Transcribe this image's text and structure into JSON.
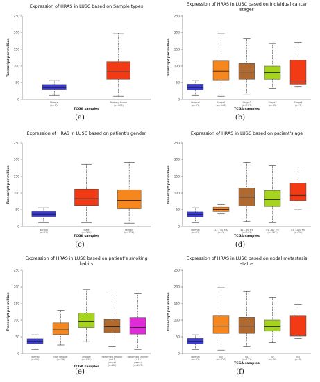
{
  "chart_data": [
    {
      "type": "box",
      "title": "Expression of HRAS in LUSC based on Sample types",
      "ylabel": "Transcript per million",
      "xlabel": "TCGA samples",
      "ylim": [
        0,
        250
      ],
      "yticks": [
        0,
        50,
        100,
        150,
        200,
        250
      ],
      "panel_label": "(a)",
      "boxes": [
        {
          "label": "Normal",
          "n": "(n=52)",
          "min": 12,
          "q1": 30,
          "median": 36,
          "q3": 44,
          "max": 56,
          "color": "#3a3adf"
        },
        {
          "label": "Primary tumor",
          "n": "(n=503)",
          "min": 10,
          "q1": 60,
          "median": 83,
          "q3": 113,
          "max": 198,
          "color": "#f23a14"
        }
      ]
    },
    {
      "type": "box",
      "title": "Expression of HRAS in LUSC based on individual cancer stages",
      "ylabel": "Transcript per million",
      "xlabel": "TCGA samples",
      "ylim": [
        0,
        250
      ],
      "yticks": [
        0,
        50,
        100,
        150,
        200,
        250
      ],
      "panel_label": "(b)",
      "boxes": [
        {
          "label": "Normal",
          "n": "(n=52)",
          "min": 12,
          "q1": 28,
          "median": 36,
          "q3": 45,
          "max": 56,
          "color": "#3a3adf"
        },
        {
          "label": "Stage1",
          "n": "(n=243)",
          "min": 10,
          "q1": 58,
          "median": 85,
          "q3": 115,
          "max": 198,
          "color": "#f5871e"
        },
        {
          "label": "Stage2",
          "n": "(n=157)",
          "min": 15,
          "q1": 60,
          "median": 82,
          "q3": 108,
          "max": 182,
          "color": "#b06a30"
        },
        {
          "label": "Stage3",
          "n": "(n=85)",
          "min": 32,
          "q1": 60,
          "median": 80,
          "q3": 100,
          "max": 167,
          "color": "#a6d41e"
        },
        {
          "label": "Stage4",
          "n": "(n=7)",
          "min": 38,
          "q1": 45,
          "median": 55,
          "q3": 118,
          "max": 170,
          "color": "#f23a14"
        }
      ]
    },
    {
      "type": "box",
      "title": "Expression of HRAS in LUSC based on patient's gender",
      "ylabel": "Transcript per million",
      "xlabel": "TCGA samples",
      "ylim": [
        0,
        250
      ],
      "yticks": [
        0,
        50,
        100,
        150,
        200,
        250
      ],
      "panel_label": "(c)",
      "boxes": [
        {
          "label": "Normal",
          "n": "(n=52)",
          "min": 12,
          "q1": 30,
          "median": 37,
          "q3": 45,
          "max": 56,
          "color": "#3a3adf"
        },
        {
          "label": "Male",
          "n": "(n=366)",
          "min": 12,
          "q1": 63,
          "median": 83,
          "q3": 112,
          "max": 187,
          "color": "#f23a14"
        },
        {
          "label": "Female",
          "n": "(n=128)",
          "min": 10,
          "q1": 53,
          "median": 78,
          "q3": 110,
          "max": 193,
          "color": "#f5871e"
        }
      ]
    },
    {
      "type": "box",
      "title": "Expression of HRAS in LUSC based on patient's age",
      "ylabel": "Transcript per million",
      "xlabel": "TCGA samples",
      "ylim": [
        0,
        250
      ],
      "yticks": [
        0,
        50,
        100,
        150,
        200,
        250
      ],
      "panel_label": "(d)",
      "boxes": [
        {
          "label": "Normal",
          "n": "(n=52)",
          "min": 12,
          "q1": 29,
          "median": 36,
          "q3": 44,
          "max": 56,
          "color": "#3a3adf"
        },
        {
          "label": "21 - 40 Yrs",
          "n": "(n=3)",
          "min": 38,
          "q1": 45,
          "median": 51,
          "q3": 58,
          "max": 66,
          "color": "#f5871e"
        },
        {
          "label": "41 - 60 Yrs",
          "n": "(n=103)",
          "min": 15,
          "q1": 62,
          "median": 88,
          "q3": 116,
          "max": 193,
          "color": "#b06a30"
        },
        {
          "label": "61 - 80 Yrs",
          "n": "(n=363)",
          "min": 12,
          "q1": 60,
          "median": 80,
          "q3": 108,
          "max": 182,
          "color": "#a6d41e"
        },
        {
          "label": "81 - 100 Yrs",
          "n": "(n=20)",
          "min": 50,
          "q1": 77,
          "median": 93,
          "q3": 130,
          "max": 178,
          "color": "#f23a14"
        }
      ]
    },
    {
      "type": "box",
      "title": "Expression of HRAS in LUSC based on patient's smoking habits",
      "ylabel": "Transcript per million",
      "xlabel": "TCGA samples",
      "ylim": [
        0,
        250
      ],
      "yticks": [
        0,
        50,
        100,
        150,
        200,
        250
      ],
      "panel_label": "(e)",
      "boxes": [
        {
          "label": "Normal",
          "n": "(n=52)",
          "min": 12,
          "q1": 29,
          "median": 36,
          "q3": 44,
          "max": 56,
          "color": "#3a3adf"
        },
        {
          "label": "Non smoker",
          "n": "(n=18)",
          "min": 25,
          "q1": 57,
          "median": 73,
          "q3": 92,
          "max": 128,
          "color": "#f5871e"
        },
        {
          "label": "Smoker",
          "n": "(n=133)",
          "min": 35,
          "q1": 78,
          "median": 97,
          "q3": 122,
          "max": 192,
          "color": "#a6d41e"
        },
        {
          "label": "Reformed smoker (<15 years)",
          "n": "(n=80)",
          "min": 22,
          "q1": 62,
          "median": 80,
          "q3": 102,
          "max": 178,
          "color": "#b06a30"
        },
        {
          "label": "Reformed smoker (>15 years)",
          "n": "(n=247)",
          "min": 12,
          "q1": 58,
          "median": 78,
          "q3": 107,
          "max": 180,
          "color": "#e02bd8"
        }
      ]
    },
    {
      "type": "box",
      "title": "Expression of HRAS in LUSC based on nodal metastasis status",
      "ylabel": "Transcript per million",
      "xlabel": "TCGA samples",
      "ylim": [
        0,
        250
      ],
      "yticks": [
        0,
        50,
        100,
        150,
        200,
        250
      ],
      "panel_label": "(f)",
      "boxes": [
        {
          "label": "Normal",
          "n": "(n=52)",
          "min": 12,
          "q1": 28,
          "median": 36,
          "q3": 45,
          "max": 56,
          "color": "#3a3adf"
        },
        {
          "label": "N0",
          "n": "(n=320)",
          "min": 10,
          "q1": 60,
          "median": 82,
          "q3": 113,
          "max": 198,
          "color": "#f5871e"
        },
        {
          "label": "N1",
          "n": "(n=131)",
          "min": 22,
          "q1": 60,
          "median": 82,
          "q3": 108,
          "max": 187,
          "color": "#b06a30"
        },
        {
          "label": "N2",
          "n": "(n=40)",
          "min": 32,
          "q1": 67,
          "median": 80,
          "q3": 100,
          "max": 168,
          "color": "#a6d41e"
        },
        {
          "label": "N3",
          "n": "(n=5)",
          "min": 45,
          "q1": 52,
          "median": 55,
          "q3": 113,
          "max": 147,
          "color": "#f23a14"
        }
      ]
    }
  ]
}
